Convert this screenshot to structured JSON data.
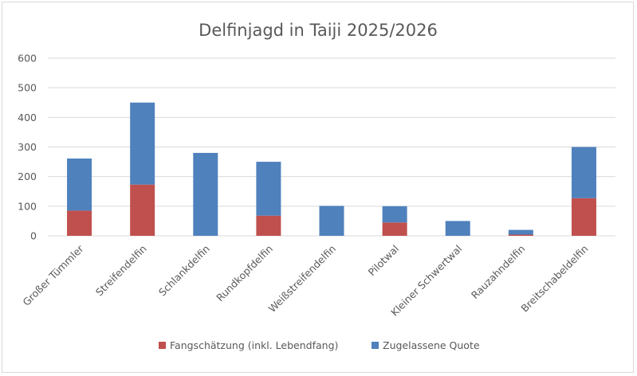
{
  "chart_data": {
    "type": "bar",
    "stacked": true,
    "title": "Delfinjagd in Taiji 2025/2026",
    "xlabel": "",
    "ylabel": "",
    "ylim": [
      0,
      600
    ],
    "yticks": [
      0,
      100,
      200,
      300,
      400,
      500,
      600
    ],
    "grid": true,
    "legend_position": "bottom",
    "categories": [
      "Großer Tümmler",
      "Streifendelfin",
      "Schlankdelfin",
      "Rundkopfdelfin",
      "Weißstreifendelfin",
      "Pilotwal",
      "Kleiner Schwertwal",
      "Rauzahndelfin",
      "Breitschabeldelfin"
    ],
    "series": [
      {
        "name": "Fangschätzung (inkl. Lebendfang)",
        "color": "#c0504d",
        "values": [
          85,
          173,
          0,
          68,
          0,
          45,
          0,
          4,
          127
        ]
      },
      {
        "name": "Zugelassene Quote",
        "color": "#4f81bd",
        "values": [
          176,
          277,
          280,
          182,
          101,
          55,
          50,
          16,
          173
        ]
      }
    ]
  }
}
